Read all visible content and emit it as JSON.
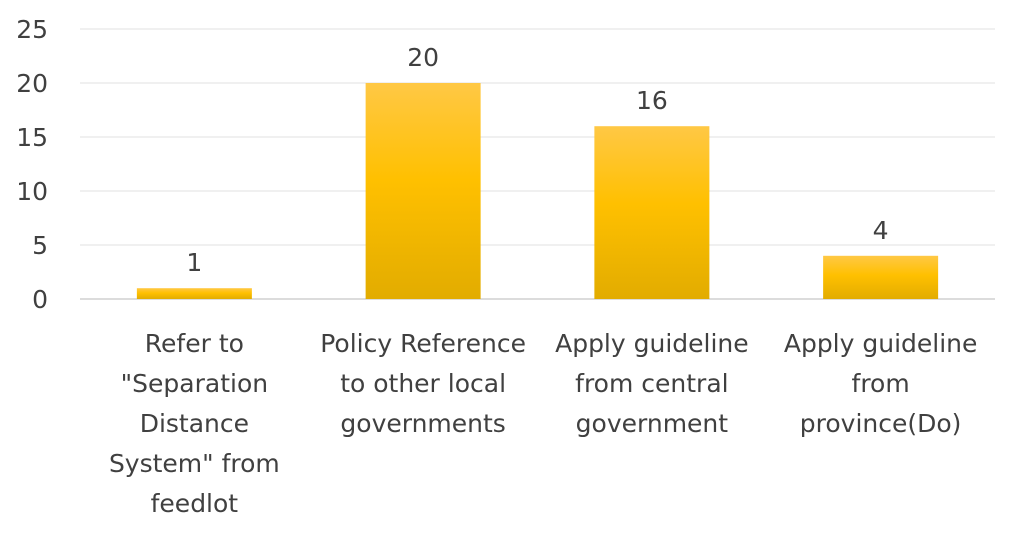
{
  "chart_data": {
    "type": "bar",
    "categories": [
      "Refer to \"Separation Distance System\" from feedlot",
      "Policy Reference to other local governments",
      "Apply guideline from central government",
      "Apply guideline from province(Do)"
    ],
    "category_lines": [
      [
        "Refer to",
        "\"Separation",
        "Distance",
        "System\" from",
        "feedlot"
      ],
      [
        "Policy Reference",
        "to other local",
        "governments"
      ],
      [
        "Apply guideline",
        "from central",
        "government"
      ],
      [
        "Apply guideline",
        "from",
        "province(Do)"
      ]
    ],
    "values": [
      1,
      20,
      16,
      4
    ],
    "data_labels": [
      "1",
      "20",
      "16",
      "4"
    ],
    "yticks": [
      "0",
      "5",
      "10",
      "15",
      "20",
      "25"
    ],
    "ylim": [
      0,
      25
    ],
    "title": "",
    "xlabel": "",
    "ylabel": "",
    "grid": true,
    "legend": false,
    "colors": {
      "bar_top": "#FFC845",
      "bar_mid": "#FFC000",
      "bar_bottom": "#E2AC00"
    }
  }
}
